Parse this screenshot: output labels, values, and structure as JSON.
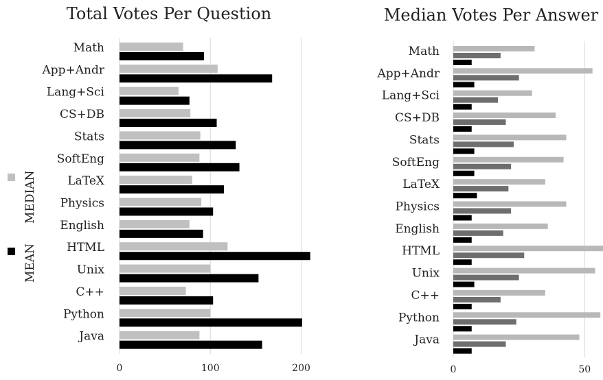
{
  "chart_data": [
    {
      "type": "bar",
      "orientation": "horizontal",
      "title": "Total Votes Per Question",
      "categories": [
        "Math",
        "App+Andr",
        "Lang+Sci",
        "CS+DB",
        "Stats",
        "SoftEng",
        "LaTeX",
        "Physics",
        "English",
        "HTML",
        "Unix",
        "C++",
        "Python",
        "Java"
      ],
      "series": [
        {
          "name": "MEDIAN",
          "color": "#c0c0c0",
          "values": [
            70,
            108,
            65,
            78,
            89,
            88,
            80,
            90,
            77,
            119,
            100,
            73,
            100,
            88
          ]
        },
        {
          "name": "MEAN",
          "color": "#000000",
          "values": [
            93,
            168,
            77,
            107,
            128,
            132,
            115,
            103,
            92,
            210,
            153,
            103,
            201,
            157
          ]
        }
      ],
      "xlim": [
        0,
        220
      ],
      "xticks": [
        0,
        100,
        200
      ],
      "grid": true,
      "legend": "left"
    },
    {
      "type": "bar",
      "orientation": "horizontal",
      "title": "Median Votes Per Answer",
      "categories": [
        "Math",
        "App+Andr",
        "Lang+Sci",
        "CS+DB",
        "Stats",
        "SoftEng",
        "LaTeX",
        "Physics",
        "English",
        "HTML",
        "Unix",
        "C++",
        "Python",
        "Java"
      ],
      "series": [
        {
          "color": "#b8b8b8",
          "values": [
            31,
            53,
            30,
            39,
            43,
            42,
            35,
            43,
            36,
            57,
            54,
            35,
            56,
            48
          ]
        },
        {
          "color": "#6e6e6e",
          "values": [
            18,
            25,
            17,
            20,
            23,
            22,
            21,
            22,
            19,
            27,
            25,
            18,
            24,
            20
          ]
        },
        {
          "color": "#000000",
          "values": [
            7,
            8,
            7,
            7,
            8,
            8,
            9,
            7,
            7,
            7,
            8,
            7,
            7,
            7
          ]
        }
      ],
      "xlim": [
        0,
        57
      ],
      "xticks": [
        0,
        50
      ],
      "grid": true
    }
  ]
}
